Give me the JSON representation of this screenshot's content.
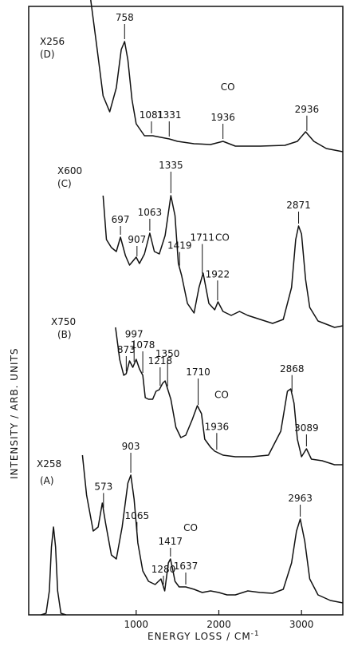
{
  "chart_data": {
    "type": "line",
    "xlabel": "ENERGY LOSS / CM",
    "xlabel_superscript": "-1",
    "ylabel": "INTENSITY / ARB. UNITS",
    "xlim": [
      -300,
      3500
    ],
    "x_ticks": [
      1000,
      2000,
      3000
    ],
    "grid": false,
    "panels": [
      {
        "id": "D",
        "label": "(D)",
        "multiplier": "X256",
        "peaks": [
          {
            "text": "758",
            "x": 860
          },
          {
            "text": "1081",
            "x": 1185
          },
          {
            "text": "1331",
            "x": 1400
          },
          {
            "text": "1936",
            "x": 2050
          },
          {
            "text": "2936",
            "x": 3065
          }
        ],
        "annotations": [
          {
            "text": "CO",
            "x": 2050
          }
        ],
        "curve": [
          [
            450,
            0
          ],
          [
            520,
            55
          ],
          [
            600,
            120
          ],
          [
            680,
            140
          ],
          [
            760,
            110
          ],
          [
            820,
            62
          ],
          [
            860,
            52
          ],
          [
            900,
            75
          ],
          [
            950,
            125
          ],
          [
            1000,
            155
          ],
          [
            1100,
            170
          ],
          [
            1200,
            170
          ],
          [
            1300,
            172
          ],
          [
            1400,
            174
          ],
          [
            1500,
            177
          ],
          [
            1700,
            180
          ],
          [
            1900,
            181
          ],
          [
            2050,
            177
          ],
          [
            2200,
            183
          ],
          [
            2500,
            183
          ],
          [
            2800,
            182
          ],
          [
            2950,
            177
          ],
          [
            3050,
            165
          ],
          [
            3150,
            177
          ],
          [
            3300,
            186
          ],
          [
            3500,
            190
          ]
        ]
      },
      {
        "id": "C",
        "label": "(C)",
        "multiplier": "X600",
        "peaks": [
          {
            "text": "697",
            "x": 810
          },
          {
            "text": "907",
            "x": 1010
          },
          {
            "text": "1063",
            "x": 1165
          },
          {
            "text": "1335",
            "x": 1420
          },
          {
            "text": "1419",
            "x": 1525
          },
          {
            "text": "1711",
            "x": 1800
          },
          {
            "text": "1922",
            "x": 1985
          },
          {
            "text": "2871",
            "x": 2965
          }
        ],
        "annotations": [
          {
            "text": "CO",
            "x": 1985
          }
        ],
        "curve": [
          [
            600,
            245
          ],
          [
            640,
            300
          ],
          [
            700,
            310
          ],
          [
            760,
            315
          ],
          [
            810,
            297
          ],
          [
            870,
            320
          ],
          [
            920,
            332
          ],
          [
            1000,
            322
          ],
          [
            1040,
            330
          ],
          [
            1100,
            318
          ],
          [
            1165,
            292
          ],
          [
            1220,
            315
          ],
          [
            1280,
            318
          ],
          [
            1350,
            295
          ],
          [
            1420,
            245
          ],
          [
            1470,
            270
          ],
          [
            1510,
            330
          ],
          [
            1550,
            345
          ],
          [
            1620,
            380
          ],
          [
            1700,
            392
          ],
          [
            1760,
            360
          ],
          [
            1810,
            342
          ],
          [
            1880,
            380
          ],
          [
            1950,
            388
          ],
          [
            1990,
            378
          ],
          [
            2050,
            390
          ],
          [
            2150,
            395
          ],
          [
            2250,
            390
          ],
          [
            2350,
            395
          ],
          [
            2500,
            400
          ],
          [
            2650,
            405
          ],
          [
            2780,
            400
          ],
          [
            2880,
            360
          ],
          [
            2930,
            300
          ],
          [
            2965,
            283
          ],
          [
            3000,
            293
          ],
          [
            3050,
            350
          ],
          [
            3100,
            385
          ],
          [
            3200,
            402
          ],
          [
            3300,
            406
          ],
          [
            3400,
            410
          ],
          [
            3500,
            408
          ]
        ]
      },
      {
        "id": "B",
        "label": "(B)",
        "multiplier": "X750",
        "peaks": [
          {
            "text": "873",
            "x": 880
          },
          {
            "text": "997",
            "x": 975
          },
          {
            "text": "1078",
            "x": 1080
          },
          {
            "text": "1218",
            "x": 1290
          },
          {
            "text": "1350",
            "x": 1380
          },
          {
            "text": "1710",
            "x": 1750
          },
          {
            "text": "1936",
            "x": 1975
          },
          {
            "text": "2868",
            "x": 2885
          },
          {
            "text": "3089",
            "x": 3060
          }
        ],
        "annotations": [
          {
            "text": "CO",
            "x": 1975
          }
        ],
        "curve": [
          [
            750,
            410
          ],
          [
            800,
            450
          ],
          [
            850,
            470
          ],
          [
            880,
            468
          ],
          [
            920,
            452
          ],
          [
            960,
            460
          ],
          [
            1000,
            450
          ],
          [
            1040,
            462
          ],
          [
            1080,
            470
          ],
          [
            1110,
            498
          ],
          [
            1150,
            500
          ],
          [
            1200,
            500
          ],
          [
            1240,
            490
          ],
          [
            1280,
            488
          ],
          [
            1320,
            480
          ],
          [
            1350,
            477
          ],
          [
            1420,
            500
          ],
          [
            1480,
            535
          ],
          [
            1540,
            548
          ],
          [
            1600,
            545
          ],
          [
            1680,
            525
          ],
          [
            1740,
            508
          ],
          [
            1790,
            518
          ],
          [
            1830,
            550
          ],
          [
            1900,
            560
          ],
          [
            1950,
            565
          ],
          [
            2050,
            570
          ],
          [
            2200,
            572
          ],
          [
            2400,
            572
          ],
          [
            2600,
            570
          ],
          [
            2750,
            540
          ],
          [
            2830,
            490
          ],
          [
            2870,
            487
          ],
          [
            2910,
            505
          ],
          [
            2950,
            550
          ],
          [
            3000,
            572
          ],
          [
            3060,
            562
          ],
          [
            3120,
            575
          ],
          [
            3250,
            577
          ],
          [
            3400,
            582
          ],
          [
            3500,
            582
          ]
        ]
      },
      {
        "id": "A",
        "label": "(A)",
        "multiplier": "X258",
        "peaks": [
          {
            "text": "573",
            "x": 605
          },
          {
            "text": "903",
            "x": 935
          },
          {
            "text": "1065",
            "x": 1010
          },
          {
            "text": "1280",
            "x": 1330
          },
          {
            "text": "1417",
            "x": 1415
          },
          {
            "text": "1637",
            "x": 1600
          },
          {
            "text": "2963",
            "x": 2985
          }
        ],
        "annotations": [
          {
            "text": "CO",
            "x": 1600
          }
        ],
        "curve": [
          [
            350,
            570
          ],
          [
            400,
            620
          ],
          [
            480,
            665
          ],
          [
            540,
            660
          ],
          [
            590,
            630
          ],
          [
            630,
            655
          ],
          [
            700,
            695
          ],
          [
            760,
            700
          ],
          [
            830,
            660
          ],
          [
            900,
            605
          ],
          [
            935,
            595
          ],
          [
            975,
            625
          ],
          [
            1020,
            680
          ],
          [
            1080,
            715
          ],
          [
            1150,
            728
          ],
          [
            1230,
            732
          ],
          [
            1300,
            725
          ],
          [
            1345,
            740
          ],
          [
            1390,
            705
          ],
          [
            1415,
            700
          ],
          [
            1440,
            712
          ],
          [
            1470,
            728
          ],
          [
            1520,
            735
          ],
          [
            1600,
            735
          ],
          [
            1700,
            738
          ],
          [
            1800,
            742
          ],
          [
            1900,
            740
          ],
          [
            2000,
            742
          ],
          [
            2100,
            745
          ],
          [
            2200,
            745
          ],
          [
            2350,
            740
          ],
          [
            2500,
            742
          ],
          [
            2650,
            743
          ],
          [
            2780,
            738
          ],
          [
            2880,
            705
          ],
          [
            2940,
            665
          ],
          [
            2985,
            650
          ],
          [
            3040,
            678
          ],
          [
            3100,
            725
          ],
          [
            3200,
            745
          ],
          [
            3350,
            752
          ],
          [
            3500,
            755
          ]
        ]
      }
    ],
    "elastic_peak": {
      "x_center": 0,
      "curve": [
        [
          -150,
          770
        ],
        [
          -90,
          768
        ],
        [
          -50,
          740
        ],
        [
          -25,
          685
        ],
        [
          0,
          660
        ],
        [
          25,
          685
        ],
        [
          50,
          740
        ],
        [
          90,
          768
        ],
        [
          150,
          770
        ]
      ]
    }
  }
}
